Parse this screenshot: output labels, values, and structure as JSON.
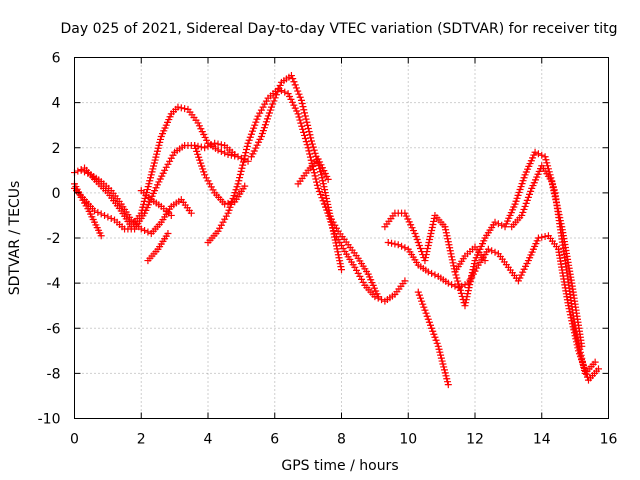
{
  "chart_data": {
    "type": "scatter",
    "title": "Day 025 of 2021, Sidereal Day-to-day VTEC variation (SDTVAR) for receiver titg",
    "xlabel": "GPS time / hours",
    "ylabel": "SDTVAR / TECUs",
    "xlim": [
      0,
      16
    ],
    "ylim": [
      -10,
      6
    ],
    "xticks": [
      "0",
      "2",
      "4",
      "6",
      "8",
      "10",
      "12",
      "14",
      "16"
    ],
    "yticks": [
      "-10",
      "-8",
      "-6",
      "-4",
      "-2",
      "0",
      "2",
      "4",
      "6"
    ],
    "grid": true,
    "marker": "+",
    "color": "#ff0000",
    "series": [
      {
        "x": [
          0.0,
          0.3,
          0.6,
          1.0,
          1.4,
          1.7,
          2.0,
          2.3,
          2.6,
          2.9,
          3.1,
          3.4,
          3.7,
          4.0,
          4.3,
          4.6,
          4.9,
          5.2
        ],
        "y": [
          0.9,
          1.1,
          0.6,
          0.0,
          -0.8,
          -1.5,
          -0.9,
          0.8,
          2.5,
          3.5,
          3.8,
          3.7,
          3.1,
          2.2,
          1.9,
          1.7,
          1.6,
          1.4
        ]
      },
      {
        "x": [
          0.0,
          0.3,
          0.6,
          0.9,
          1.2,
          1.5,
          1.8,
          2.1,
          2.4,
          2.7,
          3.0,
          3.3,
          3.6,
          3.9,
          4.2,
          4.5,
          4.8
        ],
        "y": [
          0.2,
          -0.3,
          -0.8,
          -1.0,
          -1.2,
          -1.6,
          -1.6,
          -0.9,
          0.1,
          1.0,
          1.8,
          2.1,
          2.1,
          2.0,
          2.2,
          2.1,
          1.7
        ]
      },
      {
        "x": [
          0.0,
          0.2,
          0.4,
          0.6,
          0.8
        ],
        "y": [
          0.4,
          -0.2,
          -0.7,
          -1.3,
          -1.9
        ]
      },
      {
        "x": [
          0.2,
          0.5,
          0.8,
          1.1,
          1.4,
          1.7,
          2.0,
          2.3,
          2.6,
          2.9,
          3.2,
          3.5
        ],
        "y": [
          1.0,
          0.8,
          0.5,
          0.1,
          -0.5,
          -1.2,
          -1.6,
          -1.8,
          -1.3,
          -0.6,
          -0.3,
          -0.9
        ]
      },
      {
        "x": [
          2.0,
          2.3,
          2.6,
          2.9
        ],
        "y": [
          0.1,
          -0.3,
          -0.6,
          -1.0
        ]
      },
      {
        "x": [
          2.2,
          2.5,
          2.8
        ],
        "y": [
          -3.0,
          -2.5,
          -1.8
        ]
      },
      {
        "x": [
          3.6,
          3.9,
          4.2,
          4.5,
          4.8,
          5.1
        ],
        "y": [
          2.1,
          0.8,
          0.0,
          -0.5,
          -0.4,
          0.3
        ]
      },
      {
        "x": [
          4.0,
          4.3,
          4.6,
          4.9,
          5.2,
          5.5,
          5.8,
          6.1,
          6.4,
          6.7,
          7.0,
          7.3,
          7.6,
          7.9,
          8.2,
          8.5,
          8.8,
          9.1
        ],
        "y": [
          -2.2,
          -1.7,
          -0.9,
          0.4,
          2.2,
          3.4,
          4.2,
          4.6,
          4.4,
          3.5,
          2.0,
          0.2,
          -0.9,
          -1.7,
          -2.3,
          -2.9,
          -3.6,
          -4.6
        ]
      },
      {
        "x": [
          5.3,
          5.6,
          5.9,
          6.2,
          6.5,
          6.8,
          7.1,
          7.4,
          7.7,
          8.0
        ],
        "y": [
          1.6,
          2.5,
          3.8,
          4.9,
          5.2,
          4.1,
          2.3,
          0.8,
          -1.3,
          -3.4
        ]
      },
      {
        "x": [
          6.7,
          7.0,
          7.3,
          7.6
        ],
        "y": [
          0.4,
          1.0,
          1.5,
          0.6
        ]
      },
      {
        "x": [
          7.5,
          7.8,
          8.1,
          8.4,
          8.7,
          9.0,
          9.3,
          9.6,
          9.9
        ],
        "y": [
          -0.5,
          -1.8,
          -2.6,
          -3.3,
          -4.1,
          -4.6,
          -4.8,
          -4.5,
          -3.9
        ]
      },
      {
        "x": [
          9.4,
          9.7,
          10.0,
          10.3,
          10.6,
          10.9,
          11.2,
          11.5,
          11.8,
          12.1,
          12.4,
          12.7,
          13.0,
          13.3,
          13.6,
          13.9,
          14.2,
          14.5,
          14.8,
          15.1,
          15.4,
          15.7
        ],
        "y": [
          -2.2,
          -2.3,
          -2.5,
          -3.2,
          -3.5,
          -3.7,
          -4.0,
          -4.2,
          -4.0,
          -3.2,
          -2.5,
          -2.7,
          -3.3,
          -3.9,
          -3.0,
          -2.0,
          -1.9,
          -2.5,
          -5.0,
          -7.0,
          -8.3,
          -7.8
        ]
      },
      {
        "x": [
          9.3,
          9.6,
          9.9,
          10.2,
          10.5,
          10.8,
          11.1,
          11.4,
          11.7,
          12.0,
          12.3,
          12.6,
          12.9,
          13.2,
          13.5,
          13.8,
          14.1,
          14.4,
          14.7,
          15.0,
          15.3,
          15.6
        ],
        "y": [
          -1.5,
          -0.9,
          -0.9,
          -1.8,
          -3.0,
          -1.0,
          -1.5,
          -3.5,
          -5.0,
          -3.0,
          -2.0,
          -1.3,
          -1.5,
          -0.5,
          0.8,
          1.8,
          1.6,
          0.0,
          -3.0,
          -6.0,
          -8.0,
          -7.5
        ]
      },
      {
        "x": [
          10.3,
          10.6,
          10.9,
          11.2
        ],
        "y": [
          -4.4,
          -5.6,
          -6.8,
          -8.5
        ]
      },
      {
        "x": [
          11.4,
          11.7,
          12.0,
          12.3
        ],
        "y": [
          -3.5,
          -2.8,
          -2.4,
          -3.0
        ]
      },
      {
        "x": [
          13.1,
          13.4,
          13.7,
          14.0,
          14.3,
          14.6,
          14.9,
          15.2
        ],
        "y": [
          -1.5,
          -1.0,
          0.2,
          1.2,
          0.5,
          -1.5,
          -4.0,
          -6.8
        ]
      }
    ]
  }
}
